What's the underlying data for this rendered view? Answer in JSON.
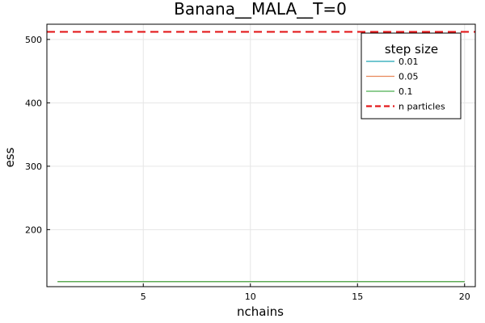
{
  "chart_data": {
    "type": "line",
    "title": "Banana__MALA__T=0",
    "xlabel": "nchains",
    "ylabel": "ess",
    "xlim": [
      0.5,
      20.5
    ],
    "ylim": [
      110,
      524
    ],
    "xticks": [
      5,
      10,
      15,
      20
    ],
    "yticks": [
      200,
      300,
      400,
      500
    ],
    "grid": true,
    "legend": {
      "title": "step size",
      "placement": "top-right"
    },
    "series": [
      {
        "name": "0.01",
        "color": "#1fa3b3",
        "style": "solid",
        "x": [
          1,
          20
        ],
        "y": [
          118,
          118
        ]
      },
      {
        "name": "0.05",
        "color": "#e8875a",
        "style": "solid",
        "x": [
          1,
          20
        ],
        "y": [
          118,
          118
        ]
      },
      {
        "name": "0.1",
        "color": "#4caf50",
        "style": "solid",
        "x": [
          1,
          20
        ],
        "y": [
          118,
          118
        ]
      }
    ],
    "reference_lines": [
      {
        "name": "n particles",
        "color": "#e31a1c",
        "style": "dashed",
        "y": 512
      }
    ]
  }
}
